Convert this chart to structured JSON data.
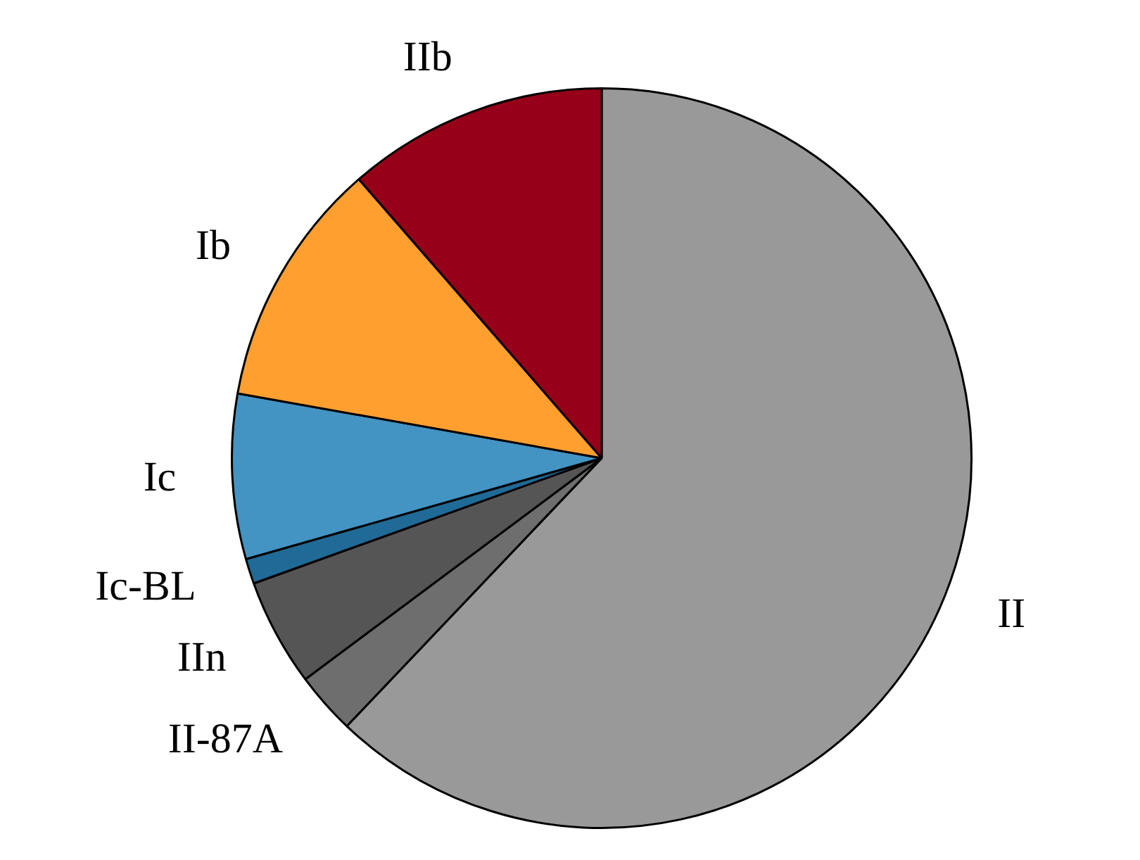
{
  "chart_data": {
    "type": "pie",
    "categories": [
      "II",
      "II-87A",
      "IIn",
      "Ic-BL",
      "Ic",
      "Ib",
      "IIb"
    ],
    "values": [
      62.1,
      2.7,
      4.7,
      1.1,
      7.2,
      10.8,
      11.4
    ],
    "colors": [
      "#999999",
      "#6e6e6e",
      "#555555",
      "#1f6a96",
      "#4393c3",
      "#ff9f2f",
      "#960018"
    ],
    "legend": false
  }
}
